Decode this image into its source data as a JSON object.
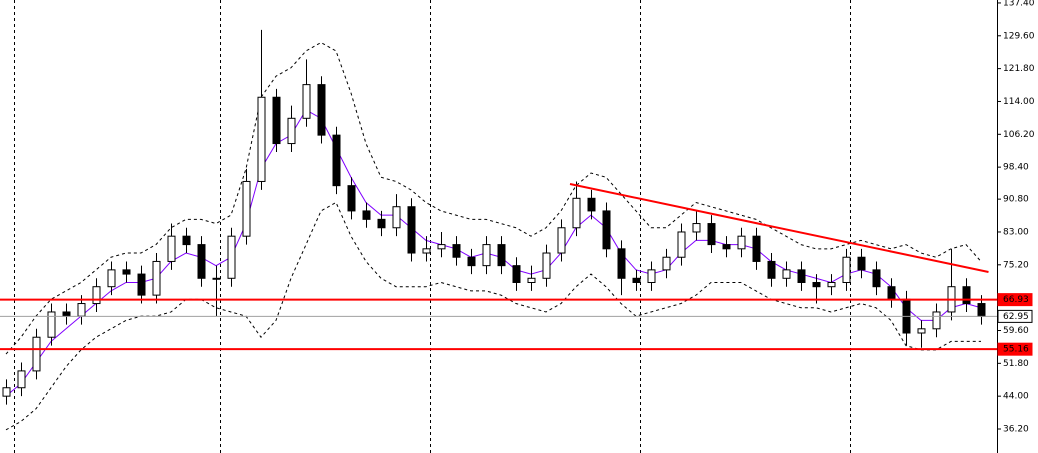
{
  "chart_data": {
    "type": "candlestick",
    "ylim": [
      30.5,
      138.1
    ],
    "yticks": [
      {
        "value": 137.4,
        "label": "137.40"
      },
      {
        "value": 129.6,
        "label": "129.60"
      },
      {
        "value": 121.8,
        "label": "121.80"
      },
      {
        "value": 114.0,
        "label": "114.00"
      },
      {
        "value": 106.2,
        "label": "106.20"
      },
      {
        "value": 98.4,
        "label": "98.40"
      },
      {
        "value": 90.8,
        "label": "90.80"
      },
      {
        "value": 83.0,
        "label": "83.00"
      },
      {
        "value": 75.2,
        "label": "75.20"
      },
      {
        "value": 59.6,
        "label": "59.60"
      },
      {
        "value": 51.8,
        "label": "51.80"
      },
      {
        "value": 44.0,
        "label": "44.00"
      },
      {
        "value": 36.2,
        "label": "36.20"
      }
    ],
    "open": [
      44,
      46,
      50,
      58,
      64,
      63,
      66,
      70,
      74,
      73,
      68,
      76,
      82,
      80,
      72,
      72,
      82,
      95,
      115,
      104,
      110,
      118,
      106,
      94,
      88,
      86,
      84,
      89,
      78,
      79,
      80,
      77,
      75,
      80,
      75,
      71,
      72,
      78,
      84,
      91,
      88,
      79,
      72,
      71,
      74,
      77,
      83,
      85,
      80,
      79,
      82,
      76,
      72,
      74,
      71,
      70,
      71,
      77,
      74,
      70,
      67,
      59,
      60,
      64,
      70,
      66
    ],
    "high": [
      48,
      52,
      60,
      66,
      66,
      68,
      72,
      76,
      76,
      75,
      78,
      85,
      84,
      82,
      75,
      84,
      98,
      131,
      117,
      113,
      124,
      120,
      108,
      96,
      90,
      88,
      92,
      91,
      82,
      83,
      82,
      79,
      82,
      82,
      77,
      75,
      80,
      86,
      95,
      93,
      90,
      81,
      74,
      76,
      79,
      85,
      88,
      87,
      82,
      84,
      84,
      78,
      76,
      76,
      73,
      73,
      79,
      79,
      76,
      72,
      69,
      62,
      66,
      79,
      72,
      68
    ],
    "low": [
      42,
      44,
      48,
      56,
      61,
      61,
      64,
      68,
      71,
      66,
      66,
      74,
      78,
      70,
      63,
      70,
      80,
      93,
      102,
      102,
      108,
      104,
      92,
      86,
      84,
      82,
      82,
      76,
      76,
      77,
      75,
      73,
      73,
      73,
      69,
      69,
      70,
      76,
      82,
      86,
      77,
      68,
      69,
      69,
      72,
      75,
      81,
      78,
      77,
      77,
      74,
      70,
      70,
      69,
      66,
      68,
      69,
      72,
      68,
      65,
      56,
      55.5,
      58,
      62,
      64,
      61
    ],
    "close": [
      46,
      50,
      58,
      64,
      63,
      66,
      70,
      74,
      73,
      68,
      76,
      82,
      80,
      72,
      72,
      82,
      95,
      115,
      104,
      110,
      118,
      106,
      94,
      88,
      86,
      84,
      89,
      78,
      79,
      80,
      77,
      75,
      80,
      75,
      71,
      72,
      78,
      84,
      91,
      88,
      79,
      72,
      71,
      74,
      77,
      83,
      85,
      80,
      79,
      82,
      76,
      72,
      74,
      71,
      70,
      71,
      77,
      74,
      70,
      67,
      59,
      60,
      64,
      70,
      66,
      62.95
    ],
    "series": [
      {
        "color": "#8000ff",
        "values": [
          44,
          47,
          52,
          57,
          60,
          63,
          66,
          69,
          71,
          71,
          72,
          76,
          78,
          77,
          75,
          77,
          85,
          98,
          104,
          106,
          112,
          110,
          103,
          96,
          90,
          87,
          87,
          84,
          81,
          80,
          79,
          77,
          78,
          77,
          74,
          73,
          74,
          78,
          84,
          87,
          84,
          78,
          74,
          73,
          74,
          78,
          81,
          81,
          80,
          80,
          79,
          76,
          74,
          73,
          72,
          71,
          73,
          74,
          73,
          70,
          65,
          62,
          62,
          65,
          66,
          65
        ]
      },
      {
        "color": "#000000",
        "values": [
          54,
          58,
          63,
          67,
          69,
          71,
          74,
          77,
          78,
          78,
          80,
          84,
          86,
          86,
          85,
          87,
          98,
          115,
          120,
          122,
          126,
          128,
          126,
          116,
          104,
          96,
          95,
          93,
          90,
          88,
          87,
          86,
          86,
          85,
          84,
          82,
          84,
          88,
          94,
          97,
          96,
          92,
          88,
          84,
          84,
          87,
          90,
          89,
          88,
          87,
          86,
          84,
          82,
          80,
          79,
          79,
          80,
          81,
          80,
          79,
          80,
          78,
          77,
          79,
          80,
          76
        ]
      },
      {
        "color": "#000000",
        "values": [
          36,
          38,
          41,
          46,
          51,
          55,
          58,
          60,
          62,
          63,
          63,
          64,
          67,
          67,
          65,
          64,
          63,
          58,
          62,
          72,
          80,
          88,
          90,
          82,
          76,
          72,
          70,
          70,
          70,
          71,
          70,
          69,
          69,
          68,
          66,
          65,
          64,
          66,
          70,
          73,
          70,
          66,
          63,
          64,
          65,
          66,
          68,
          71,
          71,
          71,
          69,
          67,
          66,
          65,
          65,
          64,
          65,
          66,
          65,
          62,
          56,
          55,
          55,
          57,
          57,
          57
        ]
      }
    ],
    "hlines": [
      {
        "value": 66.93,
        "color": "#ff0000"
      },
      {
        "value": 62.95,
        "color": "#a0a0a0"
      },
      {
        "value": 55.16,
        "color": "#ff0000"
      }
    ],
    "trendline": {
      "color": "#ff0000",
      "x": [
        37.6,
        65.5
      ],
      "values": [
        94.4,
        73.5
      ]
    }
  }
}
